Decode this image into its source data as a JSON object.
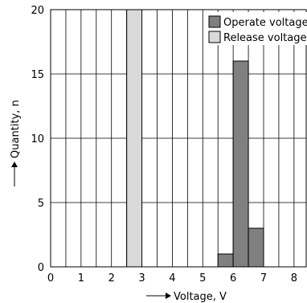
{
  "chart_data": {
    "type": "bar",
    "xlabel": "Voltage, V",
    "ylabel": "Quantity, n",
    "xlim": [
      0,
      8.4
    ],
    "ylim": [
      0,
      20
    ],
    "x_ticks": [
      "0",
      "1",
      "2",
      "3",
      "4",
      "5",
      "6",
      "7",
      "8"
    ],
    "y_ticks": [
      "0",
      "5",
      "10",
      "15",
      "20"
    ],
    "grid": true,
    "bin_width": 0.5,
    "legend_position": "top-right",
    "series": [
      {
        "name": "Operate voltage",
        "color": "#808080",
        "bars": [
          {
            "x_start": 5.5,
            "x_end": 6.0,
            "value": 1
          },
          {
            "x_start": 6.0,
            "x_end": 6.5,
            "value": 16
          },
          {
            "x_start": 6.5,
            "x_end": 7.0,
            "value": 3
          }
        ]
      },
      {
        "name": "Release voltage",
        "color": "#d9d9d9",
        "bars": [
          {
            "x_start": 2.5,
            "x_end": 3.0,
            "value": 20
          }
        ]
      }
    ]
  }
}
